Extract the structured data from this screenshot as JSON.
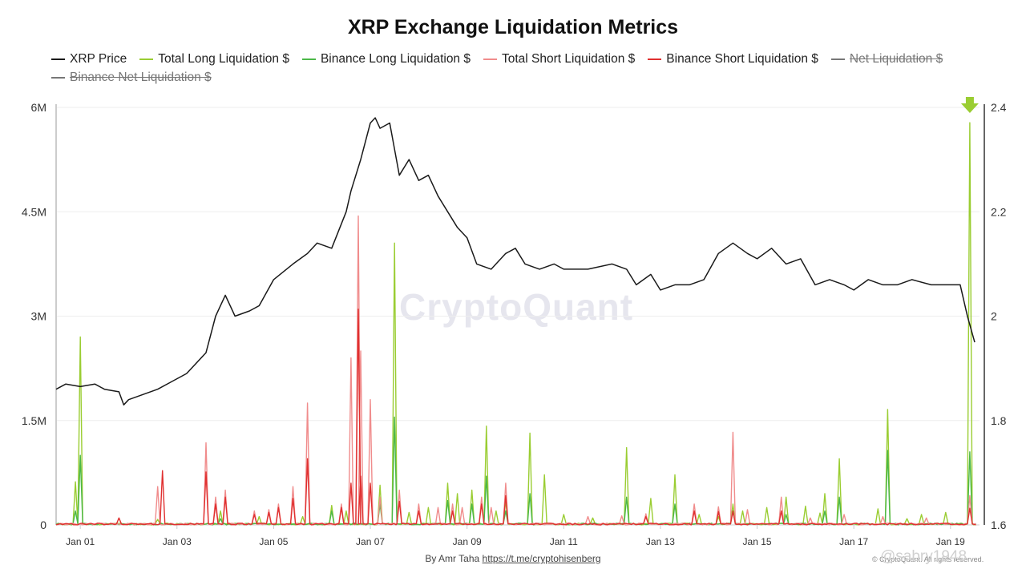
{
  "chart_data": {
    "type": "line",
    "title": "XRP Exchange Liquidation Metrics",
    "x_ticks": [
      "Jan 01",
      "Jan 03",
      "Jan 05",
      "Jan 07",
      "Jan 09",
      "Jan 11",
      "Jan 13",
      "Jan 15",
      "Jan 17",
      "Jan 19"
    ],
    "x_range": [
      -0.5,
      18.6
    ],
    "y_left": {
      "ticks": [
        "0",
        "1.5M",
        "3M",
        "4.5M",
        "6M"
      ],
      "ylim": [
        0,
        6000000
      ]
    },
    "y_right": {
      "ticks": [
        "1.6",
        "1.8",
        "2",
        "2.2",
        "2.4"
      ],
      "ylim": [
        1.6,
        2.4
      ]
    },
    "grid": true,
    "legend_placement": "top-left",
    "series": [
      {
        "name": "XRP Price",
        "color": "#1a1a1a",
        "axis": "right",
        "visible": true,
        "points": [
          [
            -0.5,
            1.86
          ],
          [
            -0.3,
            1.87
          ],
          [
            0.0,
            1.865
          ],
          [
            0.3,
            1.87
          ],
          [
            0.5,
            1.86
          ],
          [
            0.8,
            1.855
          ],
          [
            0.9,
            1.83
          ],
          [
            1.0,
            1.84
          ],
          [
            1.3,
            1.85
          ],
          [
            1.6,
            1.86
          ],
          [
            1.9,
            1.875
          ],
          [
            2.2,
            1.89
          ],
          [
            2.6,
            1.93
          ],
          [
            2.8,
            2.0
          ],
          [
            3.0,
            2.04
          ],
          [
            3.2,
            2.0
          ],
          [
            3.5,
            2.01
          ],
          [
            3.7,
            2.02
          ],
          [
            4.0,
            2.07
          ],
          [
            4.4,
            2.1
          ],
          [
            4.7,
            2.12
          ],
          [
            4.9,
            2.14
          ],
          [
            5.2,
            2.13
          ],
          [
            5.5,
            2.2
          ],
          [
            5.6,
            2.24
          ],
          [
            5.8,
            2.3
          ],
          [
            6.0,
            2.37
          ],
          [
            6.1,
            2.38
          ],
          [
            6.2,
            2.36
          ],
          [
            6.4,
            2.37
          ],
          [
            6.5,
            2.32
          ],
          [
            6.6,
            2.27
          ],
          [
            6.8,
            2.3
          ],
          [
            7.0,
            2.26
          ],
          [
            7.2,
            2.27
          ],
          [
            7.4,
            2.23
          ],
          [
            7.6,
            2.2
          ],
          [
            7.8,
            2.17
          ],
          [
            8.0,
            2.15
          ],
          [
            8.2,
            2.1
          ],
          [
            8.5,
            2.09
          ],
          [
            8.8,
            2.12
          ],
          [
            9.0,
            2.13
          ],
          [
            9.2,
            2.1
          ],
          [
            9.5,
            2.09
          ],
          [
            9.8,
            2.1
          ],
          [
            10.0,
            2.09
          ],
          [
            10.5,
            2.09
          ],
          [
            11.0,
            2.1
          ],
          [
            11.3,
            2.09
          ],
          [
            11.5,
            2.06
          ],
          [
            11.8,
            2.08
          ],
          [
            12.0,
            2.05
          ],
          [
            12.3,
            2.06
          ],
          [
            12.6,
            2.06
          ],
          [
            12.9,
            2.07
          ],
          [
            13.2,
            2.12
          ],
          [
            13.5,
            2.14
          ],
          [
            13.8,
            2.12
          ],
          [
            14.0,
            2.11
          ],
          [
            14.3,
            2.13
          ],
          [
            14.6,
            2.1
          ],
          [
            14.9,
            2.11
          ],
          [
            15.2,
            2.06
          ],
          [
            15.5,
            2.07
          ],
          [
            15.8,
            2.06
          ],
          [
            16.0,
            2.05
          ],
          [
            16.3,
            2.07
          ],
          [
            16.6,
            2.06
          ],
          [
            16.9,
            2.06
          ],
          [
            17.2,
            2.07
          ],
          [
            17.6,
            2.06
          ],
          [
            18.0,
            2.06
          ],
          [
            18.2,
            2.06
          ],
          [
            18.35,
            2.0
          ],
          [
            18.5,
            1.95
          ]
        ]
      },
      {
        "name": "Total Long Liquidation $",
        "color": "#9acd32",
        "axis": "left",
        "visible": true,
        "spikes": [
          [
            -0.1,
            620000
          ],
          [
            0.0,
            2700000
          ],
          [
            1.6,
            80000
          ],
          [
            2.9,
            200000
          ],
          [
            3.7,
            120000
          ],
          [
            4.6,
            120000
          ],
          [
            5.2,
            280000
          ],
          [
            5.5,
            200000
          ],
          [
            6.2,
            570000
          ],
          [
            6.5,
            4050000
          ],
          [
            6.8,
            180000
          ],
          [
            7.2,
            250000
          ],
          [
            7.6,
            600000
          ],
          [
            7.8,
            450000
          ],
          [
            8.1,
            500000
          ],
          [
            8.4,
            1420000
          ],
          [
            8.6,
            200000
          ],
          [
            8.8,
            350000
          ],
          [
            9.3,
            1320000
          ],
          [
            9.6,
            720000
          ],
          [
            10.0,
            150000
          ],
          [
            10.6,
            100000
          ],
          [
            11.3,
            1110000
          ],
          [
            11.8,
            380000
          ],
          [
            12.3,
            720000
          ],
          [
            12.8,
            150000
          ],
          [
            13.2,
            120000
          ],
          [
            13.5,
            300000
          ],
          [
            13.7,
            200000
          ],
          [
            14.2,
            250000
          ],
          [
            14.6,
            400000
          ],
          [
            15.0,
            270000
          ],
          [
            15.3,
            170000
          ],
          [
            15.4,
            450000
          ],
          [
            15.7,
            950000
          ],
          [
            16.5,
            230000
          ],
          [
            16.7,
            1660000
          ],
          [
            17.1,
            90000
          ],
          [
            17.4,
            150000
          ],
          [
            17.9,
            180000
          ],
          [
            18.4,
            5780000
          ]
        ]
      },
      {
        "name": "Binance Long Liquidation $",
        "color": "#4cb848",
        "axis": "left",
        "visible": true,
        "spikes": [
          [
            -0.1,
            200000
          ],
          [
            0.0,
            1000000
          ],
          [
            2.9,
            90000
          ],
          [
            5.2,
            200000
          ],
          [
            6.2,
            300000
          ],
          [
            6.5,
            1550000
          ],
          [
            7.6,
            350000
          ],
          [
            8.1,
            300000
          ],
          [
            8.4,
            700000
          ],
          [
            8.8,
            200000
          ],
          [
            9.3,
            450000
          ],
          [
            11.3,
            400000
          ],
          [
            12.3,
            300000
          ],
          [
            13.5,
            200000
          ],
          [
            14.6,
            150000
          ],
          [
            15.4,
            200000
          ],
          [
            15.7,
            400000
          ],
          [
            16.7,
            1070000
          ],
          [
            18.4,
            1050000
          ]
        ]
      },
      {
        "name": "Total Short Liquidation $",
        "color": "#f08c8c",
        "axis": "left",
        "visible": true,
        "spikes": [
          [
            1.6,
            550000
          ],
          [
            2.6,
            1180000
          ],
          [
            2.8,
            400000
          ],
          [
            3.0,
            500000
          ],
          [
            3.6,
            200000
          ],
          [
            3.9,
            220000
          ],
          [
            4.1,
            300000
          ],
          [
            4.4,
            550000
          ],
          [
            4.7,
            1750000
          ],
          [
            5.4,
            300000
          ],
          [
            5.6,
            2400000
          ],
          [
            5.75,
            4440000
          ],
          [
            5.8,
            2500000
          ],
          [
            6.0,
            1800000
          ],
          [
            6.2,
            400000
          ],
          [
            6.6,
            500000
          ],
          [
            7.0,
            300000
          ],
          [
            7.4,
            250000
          ],
          [
            7.7,
            300000
          ],
          [
            7.9,
            250000
          ],
          [
            8.3,
            400000
          ],
          [
            8.5,
            250000
          ],
          [
            8.8,
            600000
          ],
          [
            10.5,
            120000
          ],
          [
            11.2,
            130000
          ],
          [
            11.7,
            160000
          ],
          [
            12.7,
            300000
          ],
          [
            13.2,
            260000
          ],
          [
            13.5,
            1330000
          ],
          [
            13.8,
            220000
          ],
          [
            14.5,
            400000
          ],
          [
            15.1,
            100000
          ],
          [
            15.8,
            150000
          ],
          [
            16.6,
            120000
          ],
          [
            17.5,
            100000
          ],
          [
            18.4,
            420000
          ]
        ]
      },
      {
        "name": "Binance Short Liquidation $",
        "color": "#e03030",
        "axis": "left",
        "visible": true,
        "spikes": [
          [
            0.8,
            100000
          ],
          [
            1.7,
            780000
          ],
          [
            2.6,
            760000
          ],
          [
            2.8,
            300000
          ],
          [
            3.0,
            400000
          ],
          [
            3.6,
            150000
          ],
          [
            3.9,
            180000
          ],
          [
            4.1,
            250000
          ],
          [
            4.4,
            380000
          ],
          [
            4.7,
            950000
          ],
          [
            5.4,
            250000
          ],
          [
            5.6,
            600000
          ],
          [
            5.75,
            3100000
          ],
          [
            5.8,
            700000
          ],
          [
            6.0,
            600000
          ],
          [
            6.6,
            340000
          ],
          [
            7.0,
            200000
          ],
          [
            7.7,
            200000
          ],
          [
            8.3,
            300000
          ],
          [
            8.8,
            420000
          ],
          [
            11.7,
            120000
          ],
          [
            12.7,
            200000
          ],
          [
            13.2,
            190000
          ],
          [
            13.5,
            200000
          ],
          [
            14.5,
            200000
          ],
          [
            18.4,
            240000
          ]
        ]
      },
      {
        "name": "Net Liquidation $",
        "color": "#777777",
        "axis": "left",
        "visible": false
      },
      {
        "name": "Binance Net Liquidation $",
        "color": "#777777",
        "axis": "left",
        "visible": false
      }
    ],
    "annotations": [
      {
        "type": "arrow-down",
        "color": "#9acd32",
        "x": 18.4
      }
    ]
  },
  "watermark": "CryptoQuant",
  "footer": {
    "credit": "By Amr Taha",
    "link_text": "https://t.me/cryptohisenberg"
  },
  "copyright": "© CryptoQuant. All rights reserved.",
  "overlay_handle": "@sabry1948"
}
